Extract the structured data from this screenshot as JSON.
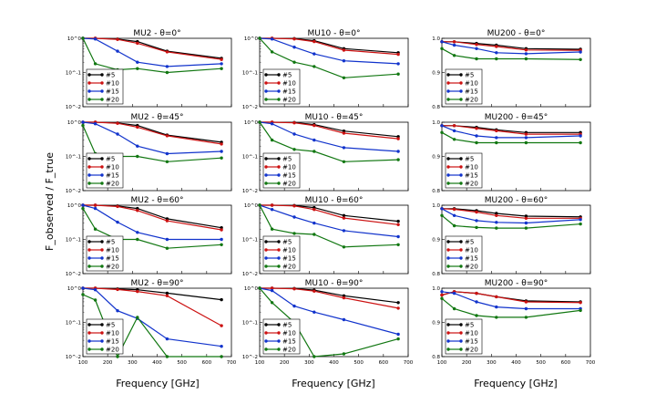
{
  "figure": {
    "ylabel": "F_observed / F_true",
    "xlabel": "Frequency [GHz]"
  },
  "chart_data": [
    {
      "type": "line",
      "title": "MU2 - θ=0°",
      "scale": "log",
      "ylim": [
        0.01,
        1
      ],
      "x": [
        100,
        150,
        240,
        320,
        440,
        660
      ],
      "series": [
        {
          "name": "#5",
          "values": [
            1,
            1,
            0.95,
            0.8,
            0.42,
            0.26
          ]
        },
        {
          "name": "#10",
          "values": [
            1,
            1,
            0.93,
            0.72,
            0.4,
            0.24
          ]
        },
        {
          "name": "#15",
          "values": [
            1,
            0.95,
            0.42,
            0.2,
            0.15,
            0.18
          ]
        },
        {
          "name": "#20",
          "values": [
            1,
            0.18,
            0.12,
            0.13,
            0.1,
            0.13
          ]
        }
      ]
    },
    {
      "type": "line",
      "title": "MU10 - θ=0°",
      "scale": "log",
      "ylim": [
        0.01,
        1
      ],
      "x": [
        100,
        150,
        240,
        320,
        440,
        660
      ],
      "series": [
        {
          "name": "#5",
          "values": [
            1,
            1,
            0.98,
            0.85,
            0.5,
            0.38
          ]
        },
        {
          "name": "#10",
          "values": [
            1,
            1,
            0.96,
            0.8,
            0.45,
            0.34
          ]
        },
        {
          "name": "#15",
          "values": [
            1,
            0.95,
            0.55,
            0.35,
            0.22,
            0.18
          ]
        },
        {
          "name": "#20",
          "values": [
            1,
            0.4,
            0.2,
            0.15,
            0.07,
            0.09
          ]
        }
      ]
    },
    {
      "type": "line",
      "title": "MU200 - θ=0°",
      "scale": "linear",
      "ylim": [
        0.8,
        1
      ],
      "x": [
        100,
        150,
        240,
        320,
        440,
        660
      ],
      "series": [
        {
          "name": "#5",
          "values": [
            0.99,
            0.99,
            0.985,
            0.98,
            0.97,
            0.968
          ]
        },
        {
          "name": "#10",
          "values": [
            0.99,
            0.99,
            0.982,
            0.976,
            0.966,
            0.965
          ]
        },
        {
          "name": "#15",
          "values": [
            0.99,
            0.98,
            0.97,
            0.958,
            0.955,
            0.96
          ]
        },
        {
          "name": "#20",
          "values": [
            0.97,
            0.95,
            0.94,
            0.94,
            0.94,
            0.938
          ]
        }
      ]
    },
    {
      "type": "line",
      "title": "MU2 - θ=45°",
      "scale": "log",
      "ylim": [
        0.01,
        1
      ],
      "x": [
        100,
        150,
        240,
        320,
        440,
        660
      ],
      "series": [
        {
          "name": "#5",
          "values": [
            1,
            1,
            0.95,
            0.8,
            0.42,
            0.26
          ]
        },
        {
          "name": "#10",
          "values": [
            1,
            1,
            0.93,
            0.72,
            0.4,
            0.23
          ]
        },
        {
          "name": "#15",
          "values": [
            1,
            0.9,
            0.45,
            0.2,
            0.12,
            0.14
          ]
        },
        {
          "name": "#20",
          "values": [
            0.8,
            0.12,
            0.1,
            0.1,
            0.07,
            0.09
          ]
        }
      ]
    },
    {
      "type": "line",
      "title": "MU10 - θ=45°",
      "scale": "log",
      "ylim": [
        0.01,
        1
      ],
      "x": [
        100,
        150,
        240,
        320,
        440,
        660
      ],
      "series": [
        {
          "name": "#5",
          "values": [
            1,
            1,
            0.98,
            0.85,
            0.55,
            0.38
          ]
        },
        {
          "name": "#10",
          "values": [
            1,
            1,
            0.96,
            0.8,
            0.48,
            0.33
          ]
        },
        {
          "name": "#15",
          "values": [
            1,
            0.9,
            0.45,
            0.3,
            0.18,
            0.14
          ]
        },
        {
          "name": "#20",
          "values": [
            1,
            0.3,
            0.16,
            0.14,
            0.07,
            0.08
          ]
        }
      ]
    },
    {
      "type": "line",
      "title": "MU200 - θ=45°",
      "scale": "linear",
      "ylim": [
        0.8,
        1
      ],
      "x": [
        100,
        150,
        240,
        320,
        440,
        660
      ],
      "series": [
        {
          "name": "#5",
          "values": [
            0.99,
            0.99,
            0.985,
            0.978,
            0.97,
            0.97
          ]
        },
        {
          "name": "#10",
          "values": [
            0.99,
            0.99,
            0.982,
            0.975,
            0.965,
            0.965
          ]
        },
        {
          "name": "#15",
          "values": [
            0.99,
            0.975,
            0.96,
            0.955,
            0.955,
            0.96
          ]
        },
        {
          "name": "#20",
          "values": [
            0.97,
            0.95,
            0.94,
            0.94,
            0.94,
            0.94
          ]
        }
      ]
    },
    {
      "type": "line",
      "title": "MU2 - θ=60°",
      "scale": "log",
      "ylim": [
        0.01,
        1
      ],
      "x": [
        100,
        150,
        240,
        320,
        440,
        660
      ],
      "series": [
        {
          "name": "#5",
          "values": [
            1,
            1,
            0.95,
            0.8,
            0.4,
            0.22
          ]
        },
        {
          "name": "#10",
          "values": [
            1,
            1,
            0.92,
            0.7,
            0.35,
            0.19
          ]
        },
        {
          "name": "#15",
          "values": [
            1,
            0.8,
            0.32,
            0.16,
            0.1,
            0.1
          ]
        },
        {
          "name": "#20",
          "values": [
            0.8,
            0.2,
            0.1,
            0.1,
            0.055,
            0.07
          ]
        }
      ]
    },
    {
      "type": "line",
      "title": "MU10 - θ=60°",
      "scale": "log",
      "ylim": [
        0.01,
        1
      ],
      "x": [
        100,
        150,
        240,
        320,
        440,
        660
      ],
      "series": [
        {
          "name": "#5",
          "values": [
            1,
            1,
            0.98,
            0.85,
            0.5,
            0.34
          ]
        },
        {
          "name": "#10",
          "values": [
            1,
            1,
            0.95,
            0.75,
            0.42,
            0.27
          ]
        },
        {
          "name": "#15",
          "values": [
            1,
            0.75,
            0.45,
            0.3,
            0.18,
            0.12
          ]
        },
        {
          "name": "#20",
          "values": [
            1,
            0.2,
            0.15,
            0.14,
            0.06,
            0.07
          ]
        }
      ]
    },
    {
      "type": "line",
      "title": "MU200 - θ=60°",
      "scale": "linear",
      "ylim": [
        0.8,
        1
      ],
      "x": [
        100,
        150,
        240,
        320,
        440,
        660
      ],
      "series": [
        {
          "name": "#5",
          "values": [
            0.99,
            0.99,
            0.984,
            0.976,
            0.968,
            0.966
          ]
        },
        {
          "name": "#10",
          "values": [
            0.99,
            0.988,
            0.98,
            0.97,
            0.962,
            0.962
          ]
        },
        {
          "name": "#15",
          "values": [
            0.99,
            0.97,
            0.955,
            0.95,
            0.948,
            0.958
          ]
        },
        {
          "name": "#20",
          "values": [
            0.97,
            0.94,
            0.935,
            0.933,
            0.933,
            0.945
          ]
        }
      ]
    },
    {
      "type": "line",
      "title": "MU2 - θ=90°",
      "scale": "log",
      "ylim": [
        0.01,
        1
      ],
      "x": [
        100,
        150,
        240,
        320,
        440,
        660
      ],
      "series": [
        {
          "name": "#5",
          "values": [
            1,
            1,
            0.95,
            0.9,
            0.72,
            0.46
          ]
        },
        {
          "name": "#10",
          "values": [
            1,
            1,
            0.92,
            0.8,
            0.6,
            0.08
          ]
        },
        {
          "name": "#15",
          "values": [
            1,
            0.9,
            0.22,
            0.13,
            0.033,
            0.02
          ]
        },
        {
          "name": "#20",
          "values": [
            0.65,
            0.45,
            0.01,
            0.14,
            0.01,
            0.01
          ]
        }
      ]
    },
    {
      "type": "line",
      "title": "MU10 - θ=90°",
      "scale": "log",
      "ylim": [
        0.01,
        1
      ],
      "x": [
        100,
        150,
        240,
        320,
        440,
        660
      ],
      "series": [
        {
          "name": "#5",
          "values": [
            1,
            1,
            0.98,
            0.88,
            0.6,
            0.38
          ]
        },
        {
          "name": "#10",
          "values": [
            1,
            1,
            0.96,
            0.82,
            0.52,
            0.26
          ]
        },
        {
          "name": "#15",
          "values": [
            1,
            0.85,
            0.3,
            0.2,
            0.12,
            0.045
          ]
        },
        {
          "name": "#20",
          "values": [
            1,
            0.38,
            0.1,
            0.01,
            0.012,
            0.033
          ]
        }
      ]
    },
    {
      "type": "line",
      "title": "MU200 - θ=90°",
      "scale": "linear",
      "ylim": [
        0.8,
        1
      ],
      "x": [
        100,
        150,
        240,
        320,
        440,
        660
      ],
      "series": [
        {
          "name": "#5",
          "values": [
            0.98,
            0.99,
            0.985,
            0.975,
            0.963,
            0.96
          ]
        },
        {
          "name": "#10",
          "values": [
            0.98,
            0.99,
            0.985,
            0.975,
            0.96,
            0.958
          ]
        },
        {
          "name": "#15",
          "values": [
            0.99,
            0.985,
            0.96,
            0.945,
            0.94,
            0.94
          ]
        },
        {
          "name": "#20",
          "values": [
            0.97,
            0.94,
            0.92,
            0.915,
            0.915,
            0.935
          ]
        }
      ]
    }
  ],
  "axes": {
    "x_ticks": [
      "100",
      "200",
      "300",
      "400",
      "500",
      "600",
      "700"
    ],
    "log_ticks": [
      "10^0",
      "10^-1",
      "10^-2"
    ],
    "lin_ticks": [
      "1.0",
      "0.9",
      "0.8"
    ]
  },
  "colors": {
    "#5": "#000000",
    "#10": "#cc1111",
    "#15": "#1133cc",
    "#20": "#117711"
  }
}
